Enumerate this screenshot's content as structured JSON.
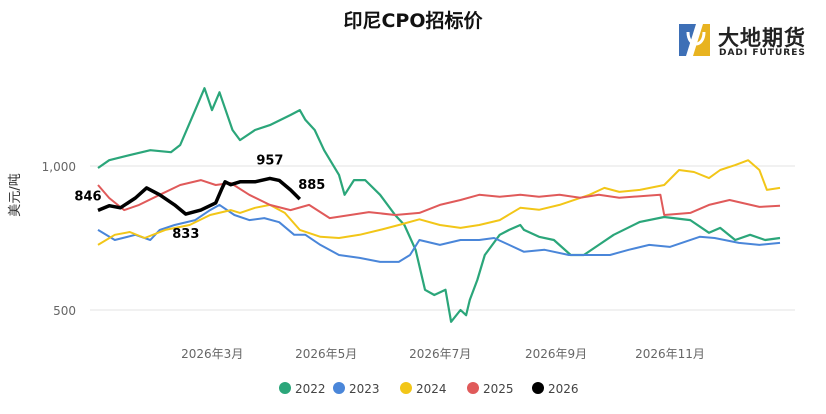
{
  "chart_data": {
    "type": "line",
    "title": "印尼CPO招标价",
    "xlabel": "",
    "ylabel": "美元/吨",
    "x_unit": "day of year",
    "xlim": [
      0,
      365
    ],
    "ylim": [
      430,
      1300
    ],
    "grid_values": [
      500,
      1000
    ],
    "y_ticks": [
      {
        "value": 500,
        "label": "500"
      },
      {
        "value": 1000,
        "label": "1,000"
      }
    ],
    "x_ticks": [
      {
        "day": 59,
        "label": "2026年3月"
      },
      {
        "day": 120,
        "label": "2026年5月"
      },
      {
        "day": 181,
        "label": "2026年7月"
      },
      {
        "day": 243,
        "label": "2026年9月"
      },
      {
        "day": 304,
        "label": "2026年11月"
      }
    ],
    "legend_position": "bottom",
    "series": [
      {
        "name": "2022",
        "color": "#2BA67A",
        "width": 2.2,
        "points": [
          [
            0,
            993
          ],
          [
            6,
            1020
          ],
          [
            17,
            1038
          ],
          [
            28,
            1055
          ],
          [
            39,
            1048
          ],
          [
            44,
            1073
          ],
          [
            52,
            1194
          ],
          [
            57,
            1270
          ],
          [
            61,
            1194
          ],
          [
            65,
            1256
          ],
          [
            72,
            1125
          ],
          [
            76,
            1090
          ],
          [
            84,
            1125
          ],
          [
            92,
            1142
          ],
          [
            103,
            1177
          ],
          [
            108,
            1194
          ],
          [
            111,
            1160
          ],
          [
            116,
            1125
          ],
          [
            121,
            1055
          ],
          [
            129,
            969
          ],
          [
            132,
            900
          ],
          [
            137,
            951
          ],
          [
            143,
            951
          ],
          [
            151,
            900
          ],
          [
            159,
            830
          ],
          [
            164,
            795
          ],
          [
            170,
            709
          ],
          [
            175,
            570
          ],
          [
            180,
            552
          ],
          [
            186,
            570
          ],
          [
            189,
            459
          ],
          [
            194,
            500
          ],
          [
            197,
            482
          ],
          [
            199,
            535
          ],
          [
            203,
            604
          ],
          [
            207,
            691
          ],
          [
            211,
            726
          ],
          [
            215,
            761
          ],
          [
            220,
            778
          ],
          [
            226,
            795
          ],
          [
            228,
            778
          ],
          [
            236,
            754
          ],
          [
            244,
            743
          ],
          [
            253,
            691
          ],
          [
            260,
            691
          ],
          [
            268,
            726
          ],
          [
            276,
            761
          ],
          [
            290,
            806
          ],
          [
            303,
            823
          ],
          [
            317,
            812
          ],
          [
            327,
            768
          ],
          [
            333,
            785
          ],
          [
            341,
            743
          ],
          [
            349,
            761
          ],
          [
            357,
            743
          ],
          [
            365,
            750
          ]
        ]
      },
      {
        "name": "2023",
        "color": "#4A86D9",
        "width": 2,
        "points": [
          [
            0,
            778
          ],
          [
            9,
            743
          ],
          [
            20,
            761
          ],
          [
            28,
            743
          ],
          [
            33,
            778
          ],
          [
            41,
            795
          ],
          [
            52,
            812
          ],
          [
            60,
            847
          ],
          [
            65,
            865
          ],
          [
            73,
            830
          ],
          [
            81,
            812
          ],
          [
            89,
            819
          ],
          [
            97,
            805
          ],
          [
            105,
            761
          ],
          [
            111,
            761
          ],
          [
            119,
            726
          ],
          [
            129,
            691
          ],
          [
            140,
            681
          ],
          [
            151,
            667
          ],
          [
            161,
            667
          ],
          [
            167,
            691
          ],
          [
            172,
            743
          ],
          [
            183,
            726
          ],
          [
            194,
            743
          ],
          [
            204,
            743
          ],
          [
            212,
            750
          ],
          [
            220,
            726
          ],
          [
            228,
            702
          ],
          [
            239,
            709
          ],
          [
            252,
            691
          ],
          [
            263,
            691
          ],
          [
            274,
            691
          ],
          [
            284,
            709
          ],
          [
            295,
            726
          ],
          [
            306,
            719
          ],
          [
            322,
            754
          ],
          [
            330,
            750
          ],
          [
            343,
            733
          ],
          [
            354,
            726
          ],
          [
            365,
            733
          ]
        ]
      },
      {
        "name": "2024",
        "color": "#F2C618",
        "width": 2,
        "points": [
          [
            0,
            726
          ],
          [
            9,
            761
          ],
          [
            17,
            771
          ],
          [
            25,
            750
          ],
          [
            36,
            778
          ],
          [
            49,
            795
          ],
          [
            60,
            830
          ],
          [
            71,
            847
          ],
          [
            76,
            837
          ],
          [
            84,
            855
          ],
          [
            92,
            865
          ],
          [
            100,
            837
          ],
          [
            108,
            778
          ],
          [
            119,
            754
          ],
          [
            129,
            750
          ],
          [
            140,
            761
          ],
          [
            151,
            778
          ],
          [
            161,
            795
          ],
          [
            172,
            815
          ],
          [
            183,
            795
          ],
          [
            194,
            785
          ],
          [
            204,
            795
          ],
          [
            215,
            812
          ],
          [
            226,
            855
          ],
          [
            236,
            848
          ],
          [
            247,
            865
          ],
          [
            263,
            900
          ],
          [
            271,
            924
          ],
          [
            279,
            910
          ],
          [
            290,
            917
          ],
          [
            303,
            934
          ],
          [
            311,
            986
          ],
          [
            319,
            979
          ],
          [
            327,
            958
          ],
          [
            333,
            986
          ],
          [
            341,
            1003
          ],
          [
            348,
            1020
          ],
          [
            354,
            986
          ],
          [
            358,
            917
          ],
          [
            365,
            924
          ]
        ]
      },
      {
        "name": "2025",
        "color": "#E05A5A",
        "width": 2,
        "points": [
          [
            0,
            934
          ],
          [
            6,
            889
          ],
          [
            14,
            847
          ],
          [
            22,
            865
          ],
          [
            33,
            900
          ],
          [
            44,
            934
          ],
          [
            55,
            951
          ],
          [
            63,
            934
          ],
          [
            71,
            941
          ],
          [
            81,
            900
          ],
          [
            92,
            865
          ],
          [
            103,
            847
          ],
          [
            113,
            865
          ],
          [
            124,
            819
          ],
          [
            135,
            830
          ],
          [
            145,
            840
          ],
          [
            159,
            830
          ],
          [
            172,
            837
          ],
          [
            183,
            865
          ],
          [
            194,
            882
          ],
          [
            204,
            900
          ],
          [
            215,
            893
          ],
          [
            226,
            900
          ],
          [
            236,
            893
          ],
          [
            247,
            900
          ],
          [
            258,
            890
          ],
          [
            268,
            900
          ],
          [
            279,
            890
          ],
          [
            301,
            900
          ],
          [
            303,
            830
          ],
          [
            317,
            837
          ],
          [
            327,
            865
          ],
          [
            338,
            882
          ],
          [
            354,
            858
          ],
          [
            365,
            862
          ]
        ]
      },
      {
        "name": "2026",
        "color": "#000000",
        "width": 3.5,
        "points": [
          [
            0,
            846
          ],
          [
            6,
            862
          ],
          [
            12,
            855
          ],
          [
            20,
            889
          ],
          [
            26,
            924
          ],
          [
            33,
            900
          ],
          [
            41,
            865
          ],
          [
            47,
            833
          ],
          [
            55,
            847
          ],
          [
            63,
            872
          ],
          [
            66,
            917
          ],
          [
            68,
            945
          ],
          [
            71,
            935
          ],
          [
            76,
            945
          ],
          [
            84,
            945
          ],
          [
            92,
            957
          ],
          [
            97,
            950
          ],
          [
            103,
            917
          ],
          [
            108,
            885
          ]
        ]
      }
    ],
    "data_labels": [
      {
        "series": "2026",
        "day": 0,
        "value": 846,
        "text": "846"
      },
      {
        "series": "2026",
        "day": 47,
        "value": 833,
        "text": "833"
      },
      {
        "series": "2026",
        "day": 92,
        "value": 957,
        "text": "957"
      },
      {
        "series": "2026",
        "day": 108,
        "value": 885,
        "text": "885"
      }
    ]
  },
  "logo": {
    "name_cn": "大地期货",
    "name_en": "DADI FUTURES"
  }
}
